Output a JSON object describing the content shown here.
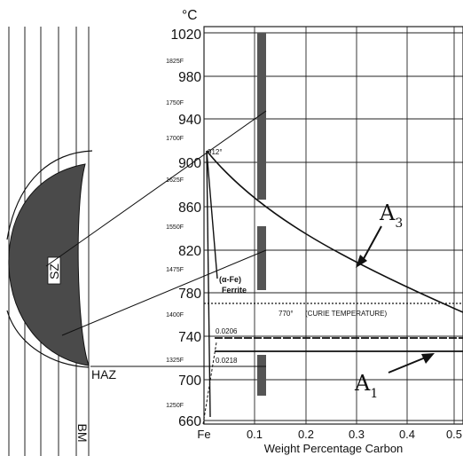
{
  "units": {
    "celsius": "°C"
  },
  "y_ticks_celsius": [
    "1020",
    "980",
    "940",
    "900",
    "860",
    "820",
    "780",
    "740",
    "700",
    "660"
  ],
  "y_ticks_fahrenheit": [
    "1825F",
    "1750F",
    "1700F",
    "1625F",
    "1550F",
    "1475F",
    "1400F",
    "1325F",
    "1250F"
  ],
  "x_ticks": [
    "Fe",
    "0.1",
    "0.2",
    "0.3",
    "0.4",
    "0.5"
  ],
  "x_label": "Weight Percentage Carbon",
  "annotations": {
    "eutectoid_point": "912°",
    "alpha_fe": "(α-Fe)",
    "ferrite": "Ferrite",
    "curie": "770°",
    "curie_note": "(CURIE TEMPERATURE)",
    "comp_upper": "0.0206",
    "comp_lower": "0.0218",
    "a3_main": "A",
    "a3_sub": "3",
    "a1_main": "A",
    "a1_sub": "1"
  },
  "weld_labels": {
    "stir_zone": "SZ",
    "heat_affected_zone": "HAZ",
    "base_metal": "BM"
  },
  "colors": {
    "ink": "#111111",
    "nugget": "#4a4a4a",
    "band": "#555555",
    "grid": "#222222"
  }
}
